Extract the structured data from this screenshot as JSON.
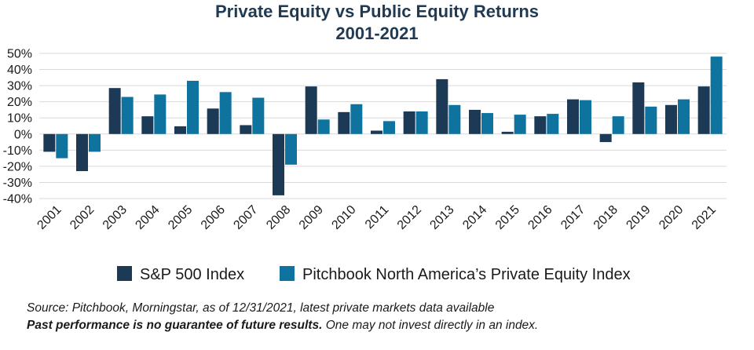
{
  "chart_data": {
    "type": "bar",
    "title": "Private Equity vs Public Equity Returns",
    "subtitle": "2001-2021",
    "xlabel": "",
    "ylabel": "",
    "ylim": [
      -40,
      50
    ],
    "ytick_values": [
      50,
      40,
      30,
      20,
      10,
      0,
      -10,
      -20,
      -30,
      -40
    ],
    "ytick_labels": [
      "50%",
      "40%",
      "30%",
      "20%",
      "10%",
      "0%",
      "-10%",
      "-20%",
      "-30%",
      "-40%"
    ],
    "grid": true,
    "legend_position": "bottom",
    "categories": [
      "2001",
      "2002",
      "2003",
      "2004",
      "2005",
      "2006",
      "2007",
      "2008",
      "2009",
      "2010",
      "2011",
      "2012",
      "2013",
      "2014",
      "2015",
      "2016",
      "2017",
      "2018",
      "2019",
      "2020",
      "2021"
    ],
    "series": [
      {
        "name": "S&P 500 Index",
        "color": "#1c3a55",
        "values": [
          -11,
          -23,
          28.5,
          11,
          4.8,
          15.8,
          5.5,
          -38,
          29.5,
          13.6,
          2.1,
          14,
          34,
          15,
          1.4,
          11,
          21.5,
          -5,
          32,
          18,
          29.5
        ]
      },
      {
        "name": "Pitchbook North America’s Private Equity Index",
        "color": "#0f739f",
        "values": [
          -15,
          -11,
          23,
          24.5,
          33,
          26,
          22.5,
          -19,
          9,
          18.5,
          8,
          14,
          18,
          13,
          12,
          12.5,
          21,
          11,
          17,
          21.5,
          48
        ]
      }
    ]
  },
  "footer": {
    "source": "Source: Pitchbook, Morningstar, as of 12/31/2021, latest private markets data available",
    "disclaimer_bold": "Past performance is no guarantee of future results.",
    "disclaimer_rest": " One may not invest directly in an index."
  }
}
